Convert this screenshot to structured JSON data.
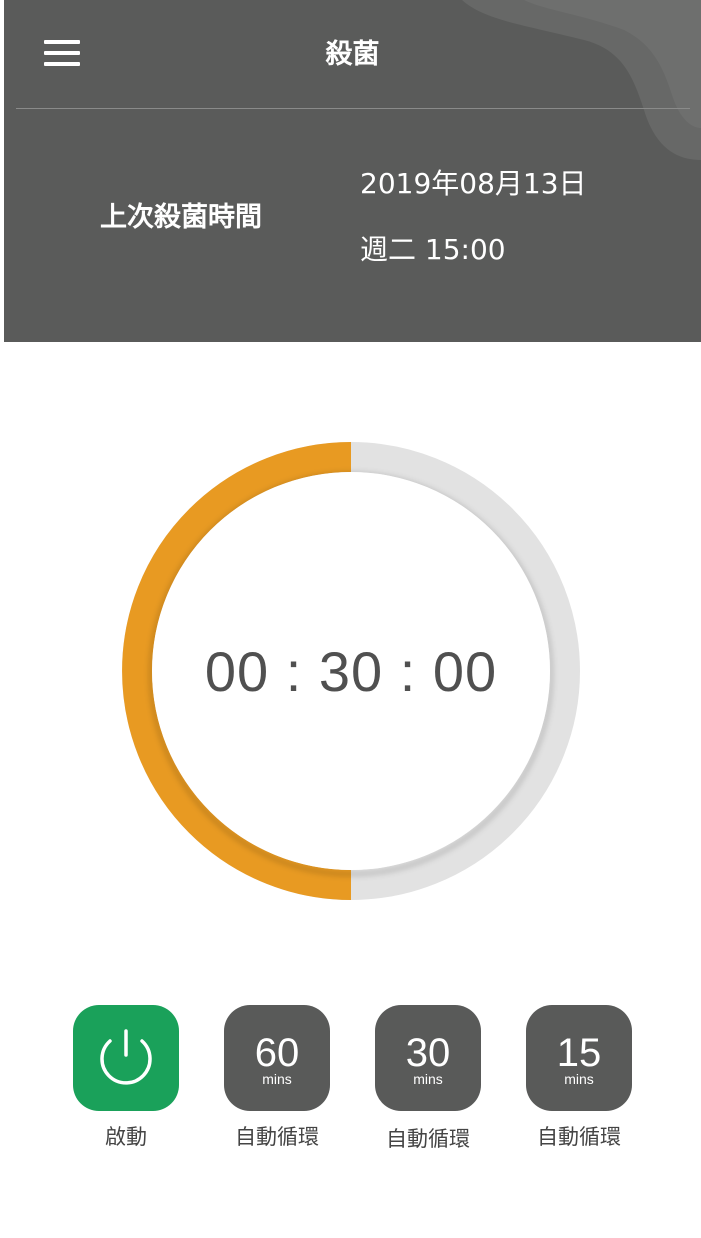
{
  "header": {
    "title": "殺菌",
    "menu_icon": "hamburger-menu-icon",
    "last_label": "上次殺菌時間",
    "last_date": "2019年08月13日",
    "last_time": "週二 15:00"
  },
  "timer": {
    "display": "00 : 30 : 00",
    "progress": 0.5
  },
  "buttons": [
    {
      "label": "啟動",
      "icon": "power-icon",
      "color": "#1aa15a"
    },
    {
      "value": "60",
      "unit": "mins",
      "label": "自動循環",
      "color": "#595a59"
    },
    {
      "value": "30",
      "unit": "mins",
      "label": "自動循環",
      "color": "#595a59"
    },
    {
      "value": "15",
      "unit": "mins",
      "label": "自動循環",
      "color": "#595a59"
    }
  ],
  "colors": {
    "header_bg": "#5a5b5a",
    "accent": "#e89a22",
    "track": "#e2e2e2"
  }
}
